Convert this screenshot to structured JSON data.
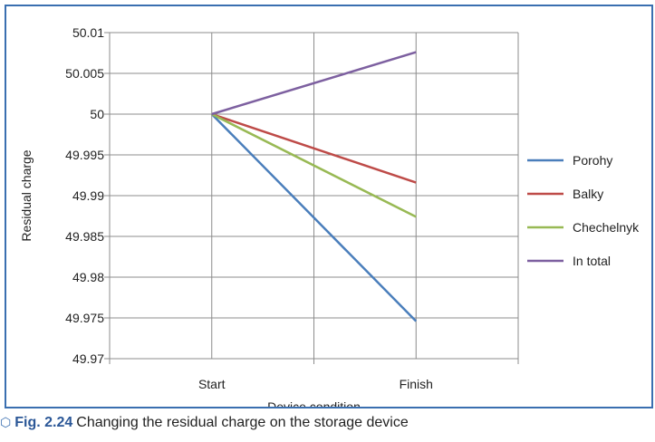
{
  "chart_data": {
    "type": "line",
    "categories": [
      "Start",
      "Finish"
    ],
    "series": [
      {
        "name": "Porohy",
        "color": "#4a7ebb",
        "values": [
          50.0,
          49.9746
        ]
      },
      {
        "name": "Balky",
        "color": "#be4b48",
        "values": [
          50.0,
          49.9916
        ]
      },
      {
        "name": "Chechelnyk",
        "color": "#98b954",
        "values": [
          50.0,
          49.9874
        ]
      },
      {
        "name": "In total",
        "color": "#7d60a0",
        "values": [
          50.0,
          50.0076
        ]
      }
    ],
    "xlabel": "Device condition",
    "ylabel": "Residual charge",
    "ylim": [
      49.97,
      50.01
    ],
    "yticks": [
      "49.97",
      "49.975",
      "49.98",
      "49.985",
      "49.99",
      "49.995",
      "50",
      "50.005",
      "50.01"
    ],
    "grid": true,
    "legend_position": "right"
  },
  "caption": {
    "icon": "chevron-up-icon",
    "label": "Fig. 2.24",
    "text": "Changing the residual charge on the storage device"
  }
}
